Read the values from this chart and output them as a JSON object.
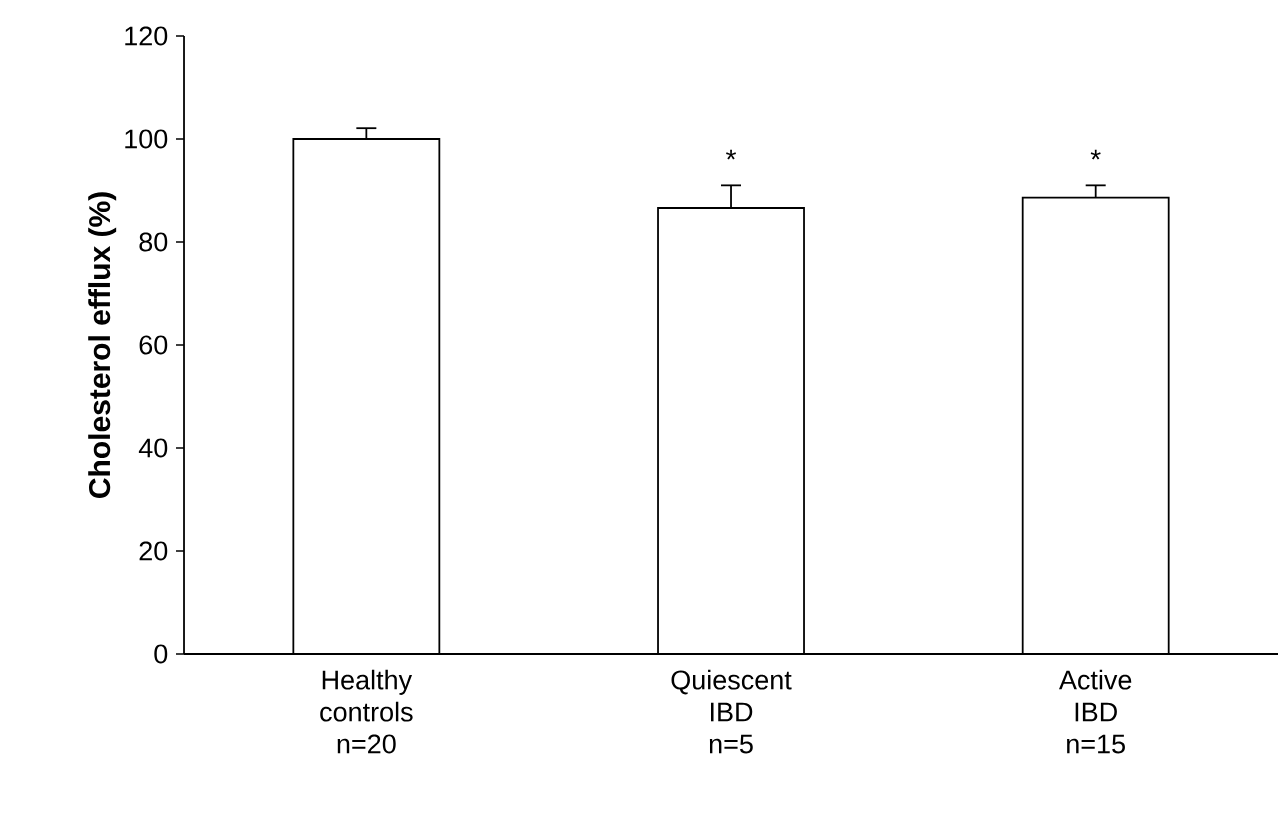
{
  "chart_data": {
    "type": "bar",
    "ylabel": "Cholesterol efflux (%)",
    "categories": [
      "Healthy\ncontrols\nn=20",
      "Quiescent\nIBD\nn=5",
      "Active\nIBD\nn=15"
    ],
    "values": [
      100,
      86.6,
      88.6
    ],
    "color": "#ffffff",
    "errors": [
      [
        100,
        102.1
      ],
      [
        86.6,
        91
      ],
      [
        88.6,
        91
      ]
    ],
    "ylim": [
      0,
      120
    ],
    "yticks": [
      0,
      20,
      40,
      60,
      80,
      100,
      120
    ],
    "annotations": [
      "*",
      "*"
    ]
  }
}
